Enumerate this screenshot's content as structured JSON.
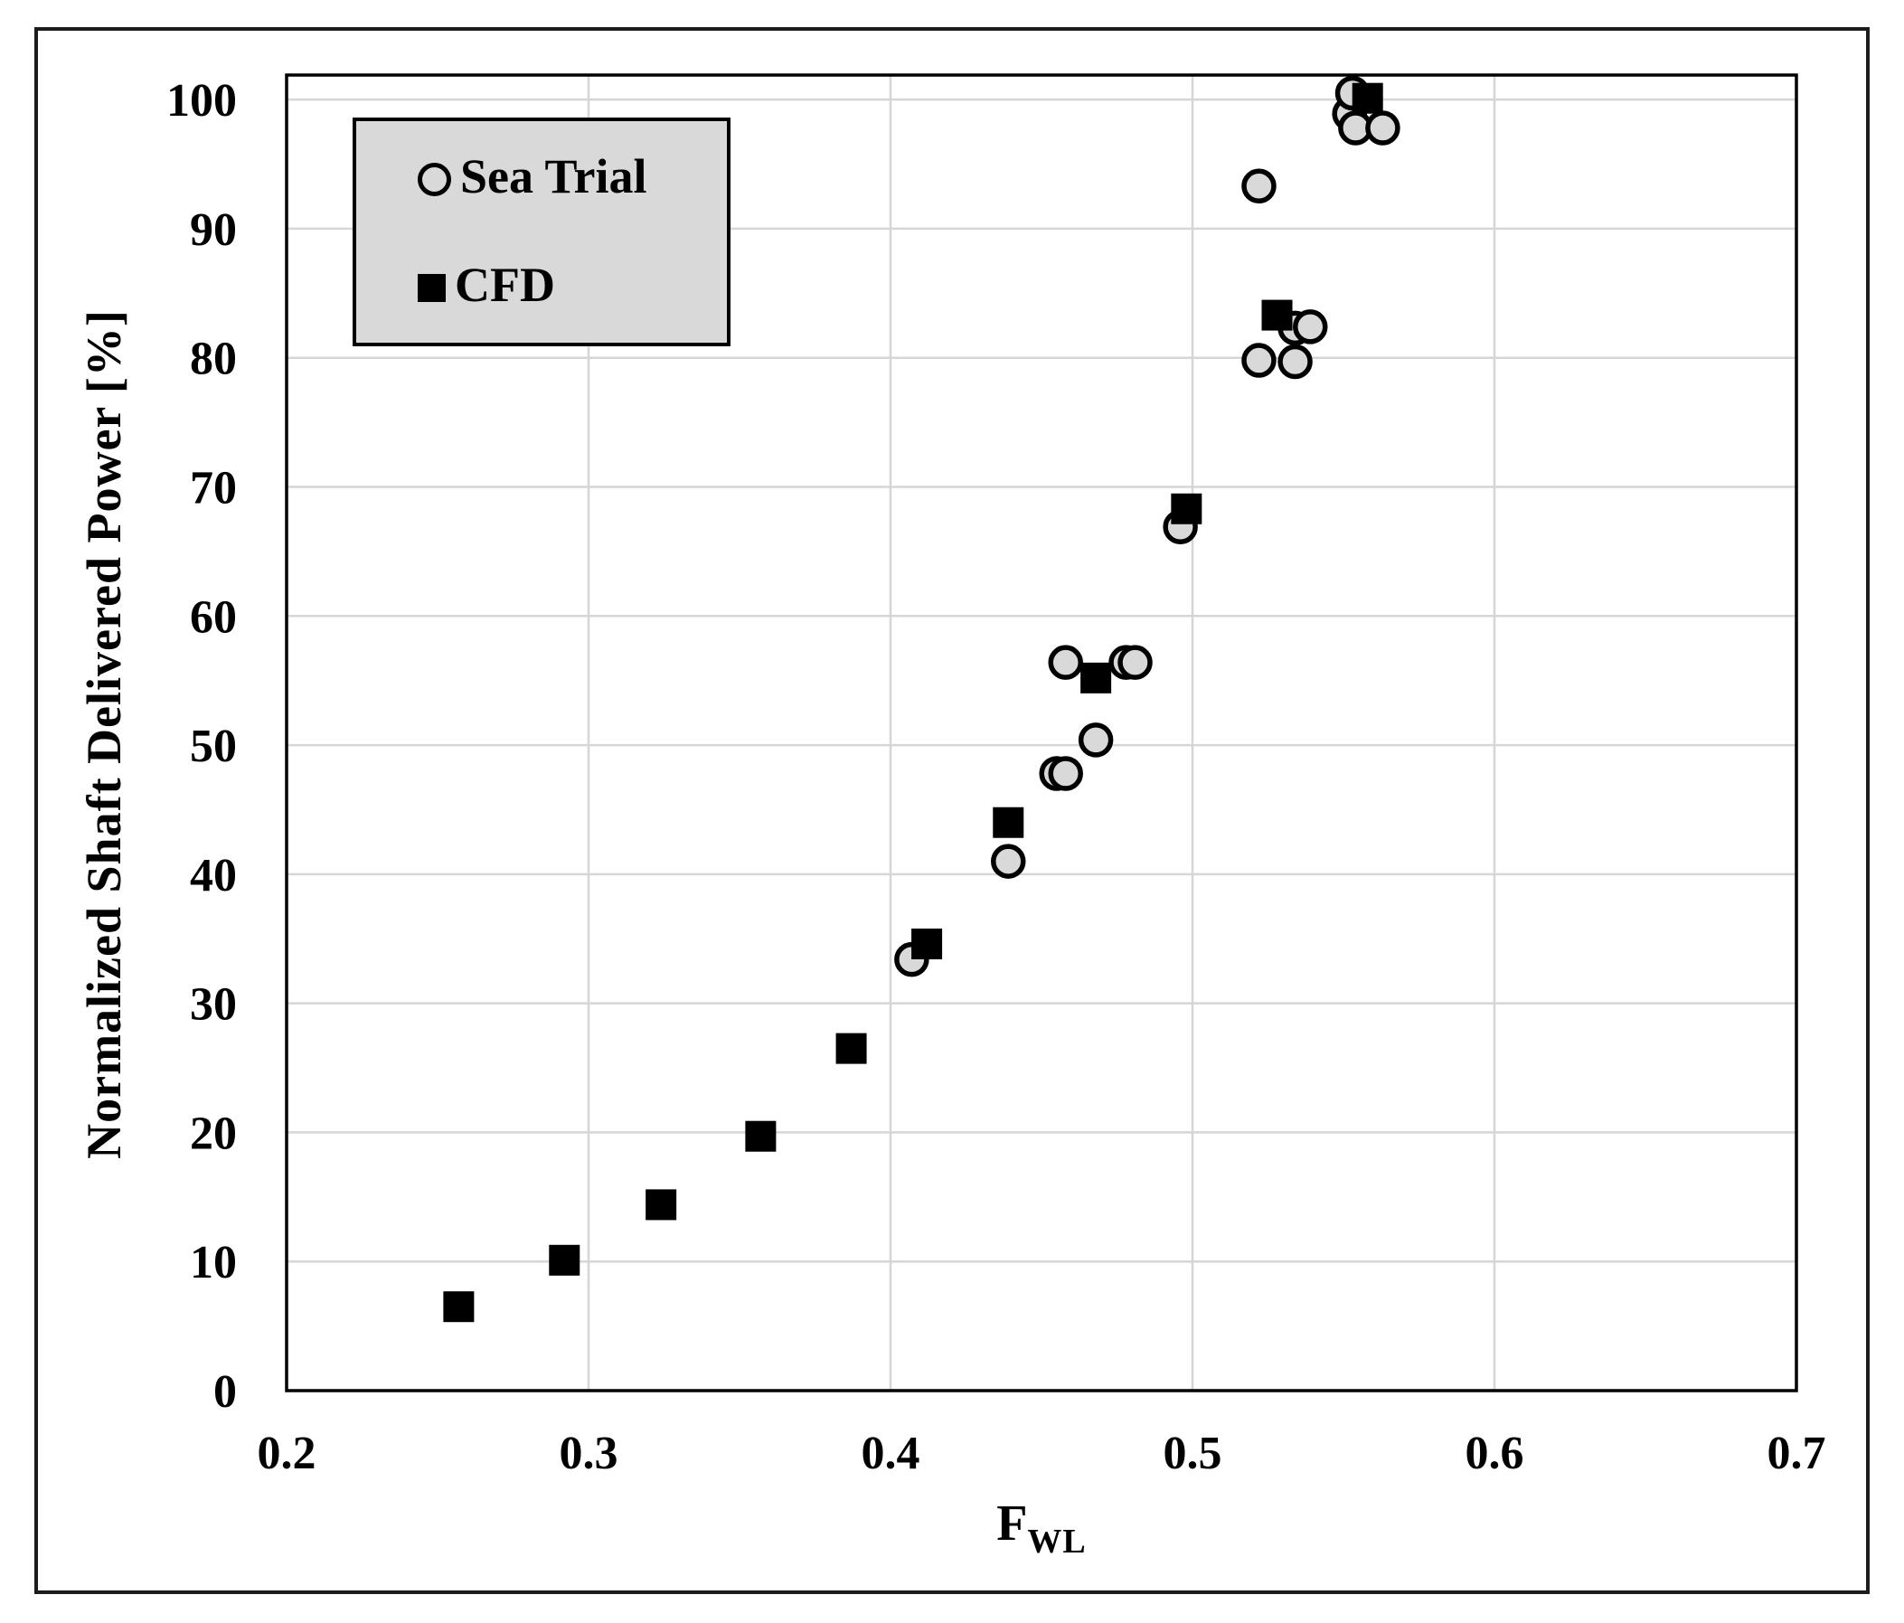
{
  "figure": {
    "y_axis_title": "Normalized Shaft Delivered Power [%]",
    "x_axis_title_main": "F",
    "x_axis_title_sub": "WL",
    "legend": {
      "items": [
        {
          "label": "Sea Trial",
          "marker": "circle-outline-icon"
        },
        {
          "label": "CFD",
          "marker": "filled-square-icon"
        }
      ]
    }
  },
  "colors": {
    "background": "#ffffff",
    "frame": "#1c1c1c",
    "plot_border": "#000000",
    "gridline": "#d6d6d6",
    "tick_text": "#000000",
    "sea_trial_fill": "#d9d9d9",
    "sea_trial_stroke": "#000000",
    "cfd_fill": "#000000",
    "legend_background": "#d9d9d9"
  },
  "chart_data": {
    "type": "scatter",
    "title": "",
    "xlabel": "F_WL",
    "ylabel": "Normalized Shaft Delivered Power [%]",
    "xlim": [
      0.2,
      0.7
    ],
    "ylim": [
      0,
      101.9
    ],
    "x_ticks": [
      0.2,
      0.3,
      0.4,
      0.5,
      0.6,
      0.7
    ],
    "x_tick_labels": [
      "0.2",
      "0.3",
      "0.4",
      "0.5",
      "0.6",
      "0.7"
    ],
    "y_ticks": [
      0,
      10,
      20,
      30,
      40,
      50,
      60,
      70,
      80,
      90,
      100
    ],
    "y_tick_labels": [
      "0",
      "10",
      "20",
      "30",
      "40",
      "50",
      "60",
      "70",
      "80",
      "90",
      "100"
    ],
    "grid": true,
    "legend_position": "top-left",
    "series": [
      {
        "name": "Sea Trial",
        "marker": "circle",
        "fill": "#d9d9d9",
        "stroke": "#000000",
        "points": [
          [
            0.407,
            33.4
          ],
          [
            0.439,
            41.0
          ],
          [
            0.455,
            47.8
          ],
          [
            0.458,
            47.8
          ],
          [
            0.468,
            50.4
          ],
          [
            0.458,
            56.4
          ],
          [
            0.478,
            56.4
          ],
          [
            0.481,
            56.4
          ],
          [
            0.496,
            66.9
          ],
          [
            0.522,
            79.8
          ],
          [
            0.534,
            79.7
          ],
          [
            0.534,
            82.3
          ],
          [
            0.539,
            82.4
          ],
          [
            0.522,
            93.3
          ],
          [
            0.552,
            98.9
          ],
          [
            0.554,
            97.8
          ],
          [
            0.563,
            97.8
          ],
          [
            0.553,
            100.5
          ]
        ]
      },
      {
        "name": "CFD",
        "marker": "square",
        "fill": "#000000",
        "stroke": "#000000",
        "points": [
          [
            0.257,
            6.5
          ],
          [
            0.292,
            10.1
          ],
          [
            0.324,
            14.4
          ],
          [
            0.357,
            19.7
          ],
          [
            0.387,
            26.5
          ],
          [
            0.412,
            34.6
          ],
          [
            0.439,
            44.0
          ],
          [
            0.468,
            55.2
          ],
          [
            0.498,
            68.3
          ],
          [
            0.528,
            83.3
          ],
          [
            0.558,
            100.1
          ]
        ]
      }
    ]
  }
}
